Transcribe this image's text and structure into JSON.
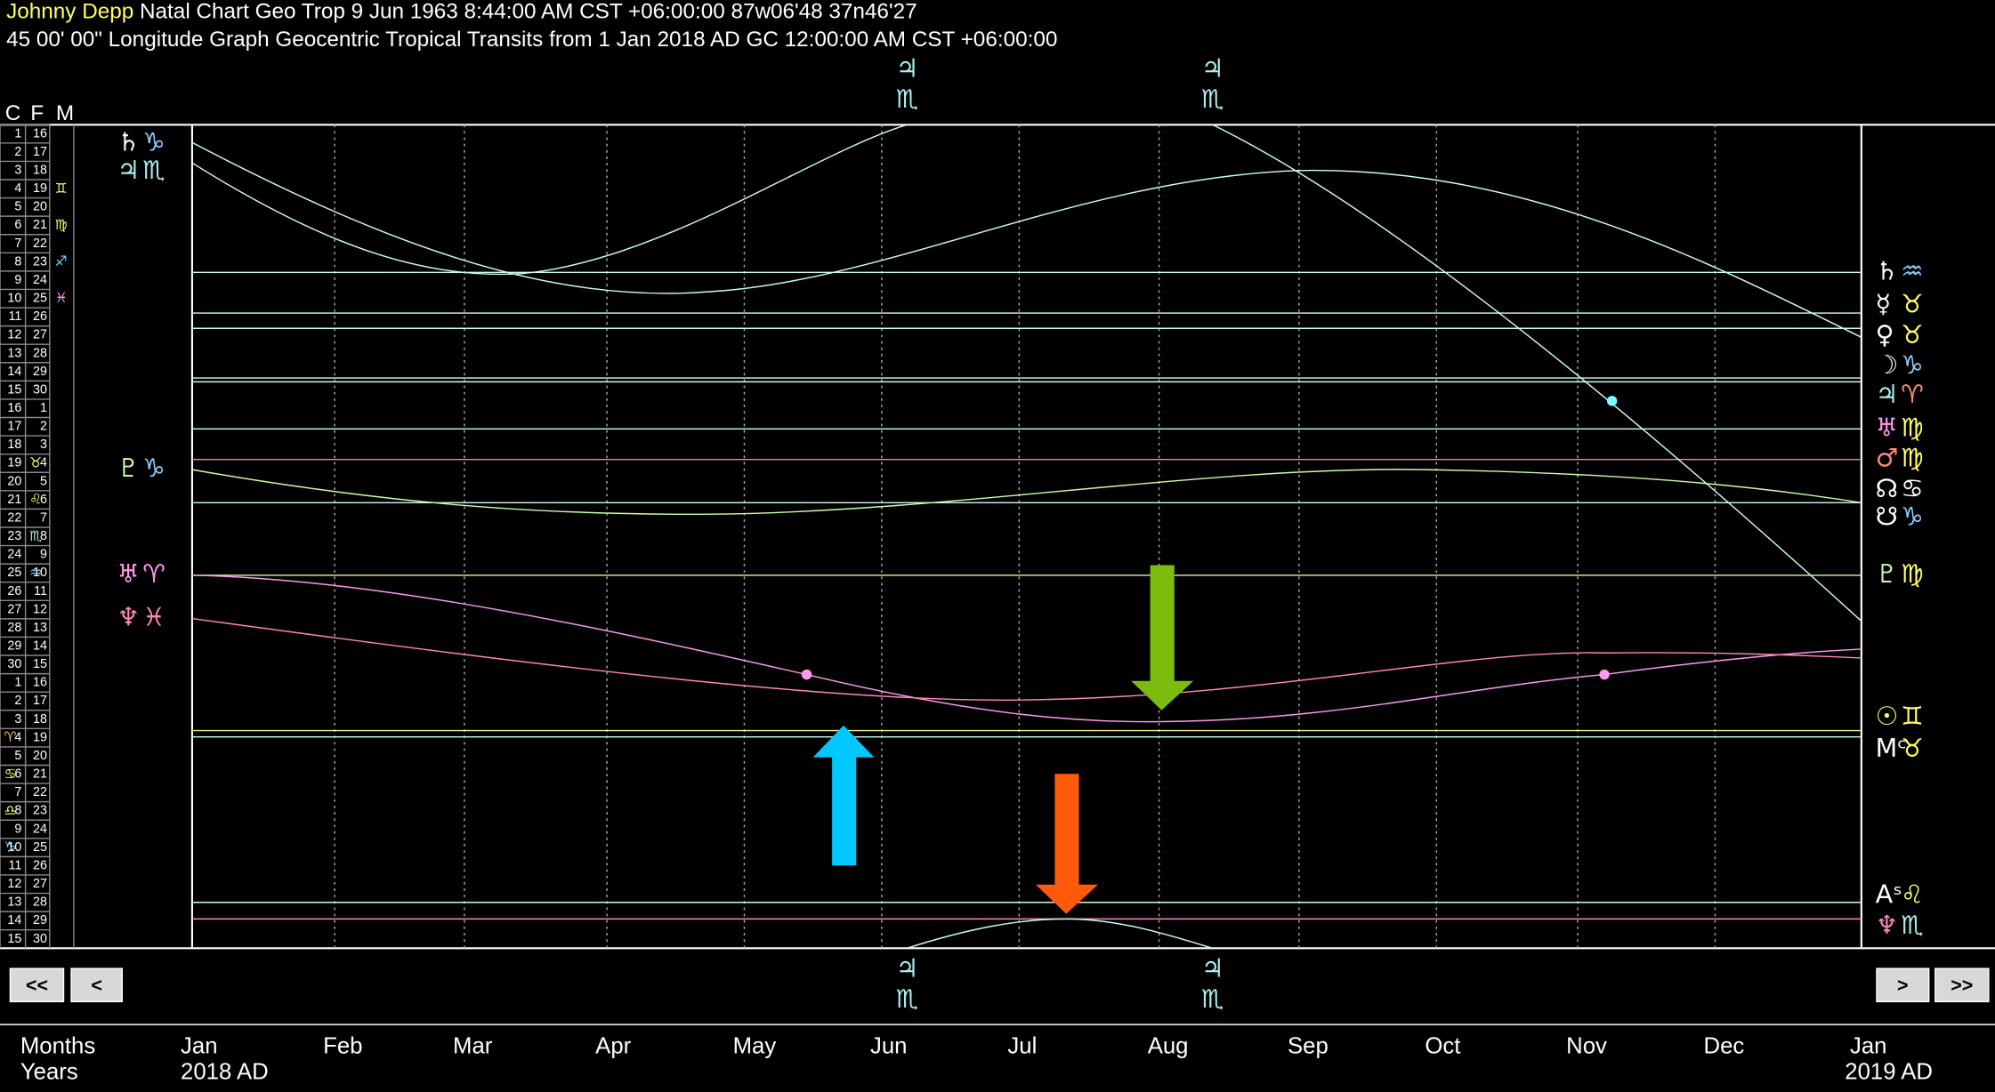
{
  "header": {
    "name": "Johnny Depp",
    "chart_info": "Natal Chart Geo Trop 9 Jun 1963 8:44:00 AM CST +06:00:00 87w06'48 37n46'27",
    "subtitle": "45 00' 00\" Longitude Graph Geocentric Tropical Transits from 1 Jan 2018 AD GC 12:00:00 AM CST +06:00:00"
  },
  "scale": {
    "headers": [
      "C",
      "F",
      "M"
    ],
    "col1": [
      1,
      2,
      3,
      4,
      5,
      6,
      7,
      8,
      9,
      10,
      11,
      12,
      13,
      14,
      15,
      16,
      17,
      18,
      19,
      20,
      21,
      22,
      23,
      24,
      25,
      26,
      27,
      28,
      29,
      30,
      1,
      2,
      3,
      4,
      5,
      6,
      7,
      8,
      9,
      10,
      11,
      12,
      13,
      14,
      15
    ],
    "col2": [
      16,
      17,
      18,
      19,
      20,
      21,
      22,
      23,
      24,
      25,
      26,
      27,
      28,
      29,
      30,
      1,
      2,
      3,
      4,
      5,
      6,
      7,
      8,
      9,
      10,
      11,
      12,
      13,
      14,
      15,
      16,
      17,
      18,
      19,
      20,
      21,
      22,
      23,
      24,
      25,
      26,
      27,
      28,
      29,
      30
    ],
    "signs": [
      "♊",
      "♍",
      "♐",
      "♓",
      "♉",
      "♌",
      "♏",
      "♒",
      "♈",
      "♋",
      "♎",
      "♑"
    ]
  },
  "left_labels": [
    {
      "planet": "♄",
      "sign": "♑"
    },
    {
      "planet": "♃",
      "sign": "♏"
    },
    {
      "planet": "♇",
      "sign": "♑"
    },
    {
      "planet": "♅",
      "sign": "♈"
    },
    {
      "planet": "♆",
      "sign": "♓"
    }
  ],
  "right_labels": [
    {
      "planet": "♄",
      "sign": "♒"
    },
    {
      "planet": "☿",
      "sign": "♉"
    },
    {
      "planet": "♀",
      "sign": "♉"
    },
    {
      "planet": "☽",
      "sign": "♑"
    },
    {
      "planet": "♃",
      "sign": "♈"
    },
    {
      "planet": "♅",
      "sign": "♍"
    },
    {
      "planet": "♂",
      "sign": "♍"
    },
    {
      "planet": "☊",
      "sign": "♋"
    },
    {
      "planet": "☋",
      "sign": "♑"
    },
    {
      "planet": "♇",
      "sign": "♍"
    },
    {
      "planet": "☉",
      "sign": "♊"
    },
    {
      "planet": "Mᶜ",
      "sign": "♉"
    },
    {
      "planet": "Aˢ",
      "sign": "♌"
    },
    {
      "planet": "♆",
      "sign": "♏"
    }
  ],
  "top_labels": [
    {
      "planet": "♃",
      "sign": "♏"
    },
    {
      "planet": "♃",
      "sign": "♏"
    }
  ],
  "bottom_labels": [
    {
      "planet": "♃",
      "sign": "♏"
    },
    {
      "planet": "♃",
      "sign": "♏"
    }
  ],
  "months": [
    "Jan",
    "Feb",
    "Mar",
    "Apr",
    "May",
    "Jun",
    "Jul",
    "Aug",
    "Sep",
    "Oct",
    "Nov",
    "Dec",
    "Jan"
  ],
  "footer": {
    "months_label": "Months",
    "years_label": "Years",
    "start_year": "2018 AD",
    "end_year": "2019 AD"
  },
  "buttons": [
    "<<",
    "<",
    ">",
    ">>"
  ]
}
